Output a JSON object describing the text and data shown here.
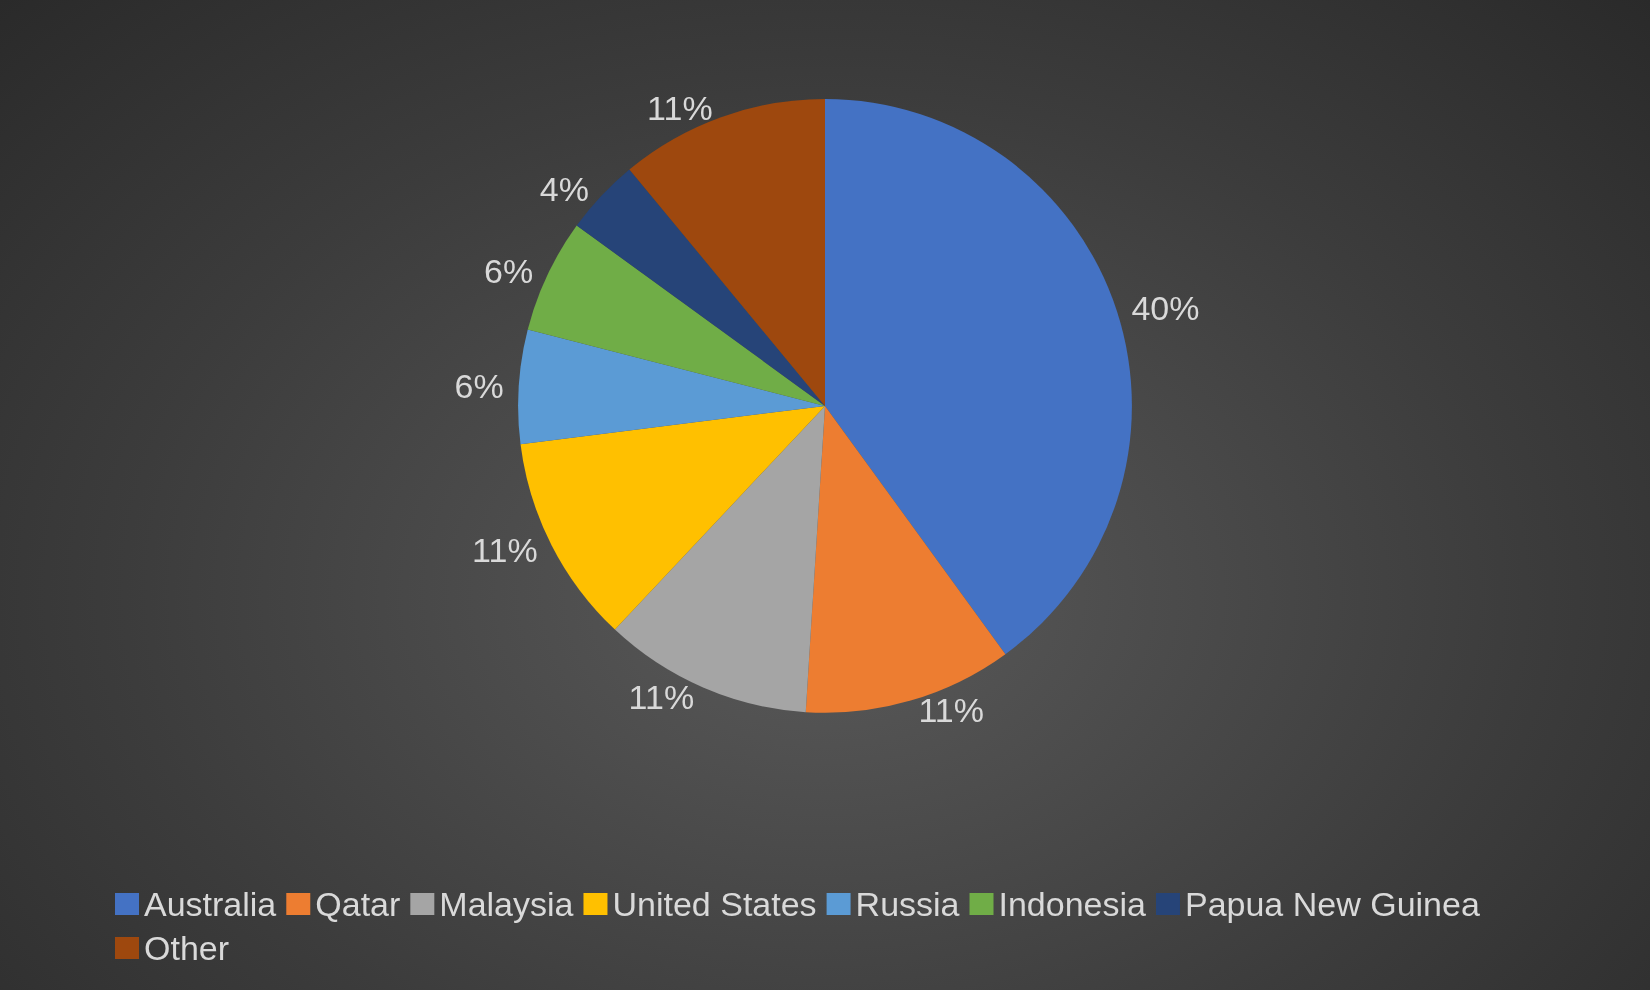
{
  "chart_data": {
    "type": "pie",
    "categories": [
      "Australia",
      "Qatar",
      "Malaysia",
      "United States",
      "Russia",
      "Indonesia",
      "Papua New Guinea",
      "Other"
    ],
    "values": [
      40,
      11,
      11,
      11,
      6,
      6,
      4,
      11
    ],
    "colors": [
      "#4472c4",
      "#ed7d31",
      "#a5a5a5",
      "#ffc000",
      "#5b9bd5",
      "#70ad47",
      "#264478",
      "#9e480e"
    ],
    "value_labels": [
      "40%",
      "11%",
      "11%",
      "11%",
      "6%",
      "6%",
      "4%",
      "11%"
    ],
    "legend": "bottom"
  }
}
